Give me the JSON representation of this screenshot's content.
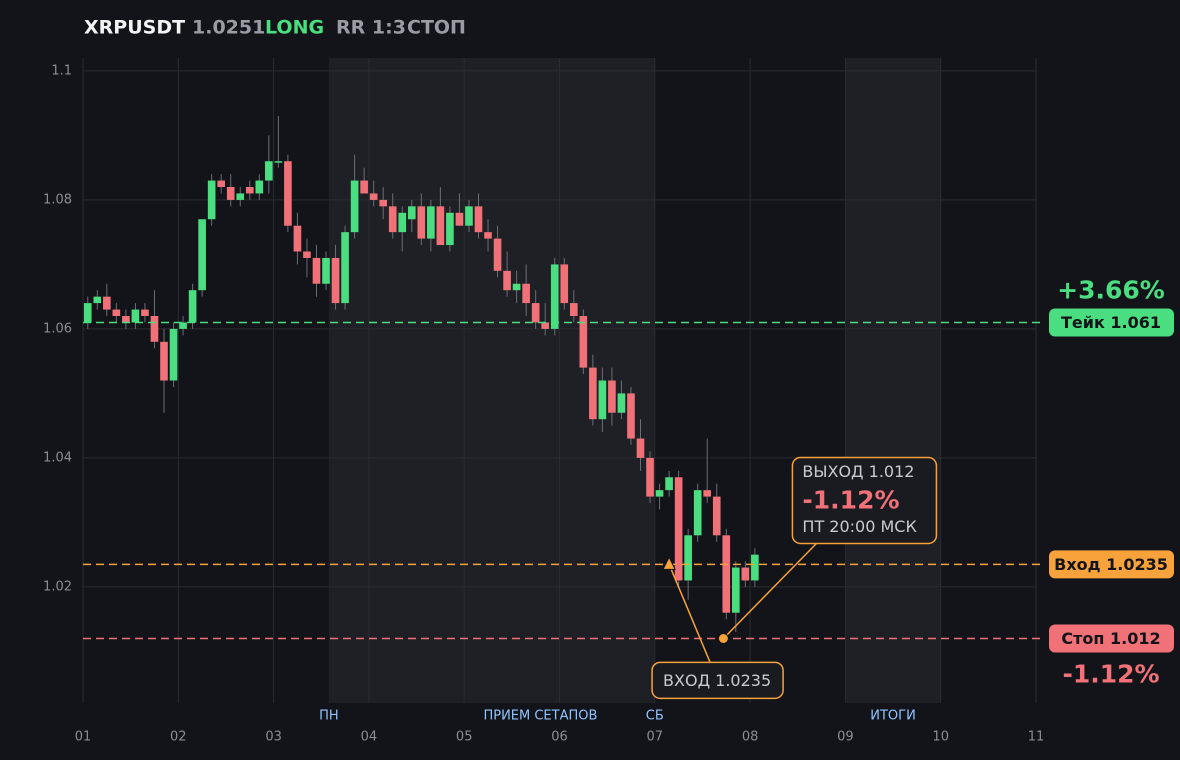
{
  "chart_data": {
    "type": "candlestick",
    "symbol": "XRPUSDT",
    "price": "1.0251",
    "side": "LONG",
    "rr": "RR 1:3",
    "mode": "СТОП",
    "up_color": "#4ade80",
    "down_color": "#f07178",
    "xlim": [
      1,
      11
    ],
    "xticks": [
      {
        "value": 1,
        "label": "01"
      },
      {
        "value": 2,
        "label": "02"
      },
      {
        "value": 3,
        "label": "03"
      },
      {
        "value": 4,
        "label": "04"
      },
      {
        "value": 5,
        "label": "05"
      },
      {
        "value": 6,
        "label": "06"
      },
      {
        "value": 7,
        "label": "07"
      },
      {
        "value": 8,
        "label": "08"
      },
      {
        "value": 9,
        "label": "09"
      },
      {
        "value": 10,
        "label": "10"
      },
      {
        "value": 11,
        "label": "11"
      }
    ],
    "ylim": [
      1.002,
      1.102
    ],
    "yticks": [
      1.02,
      1.04,
      1.06,
      1.08,
      1.1
    ],
    "grid": true,
    "shaded": [
      [
        3.58,
        7.0
      ],
      [
        9.0,
        10.0
      ]
    ],
    "sessions": [
      {
        "label": "ПН",
        "x": 3.58
      },
      {
        "label": "ПРИЕМ СЕТАПОВ",
        "x": 5.8
      },
      {
        "label": "СБ",
        "x": 7.0
      },
      {
        "label": "ИТОГИ",
        "x": 9.5
      }
    ],
    "x": [
      1.05,
      1.15,
      1.25,
      1.35,
      1.45,
      1.55,
      1.65,
      1.75,
      1.85,
      1.95,
      2.05,
      2.15,
      2.25,
      2.35,
      2.45,
      2.55,
      2.65,
      2.75,
      2.85,
      2.95,
      3.05,
      3.15,
      3.25,
      3.35,
      3.45,
      3.55,
      3.65,
      3.75,
      3.85,
      3.95,
      4.05,
      4.15,
      4.25,
      4.35,
      4.45,
      4.55,
      4.65,
      4.75,
      4.85,
      4.95,
      5.05,
      5.15,
      5.25,
      5.35,
      5.45,
      5.55,
      5.65,
      5.75,
      5.85,
      5.95,
      6.05,
      6.15,
      6.25,
      6.35,
      6.45,
      6.55,
      6.65,
      6.75,
      6.85,
      6.95,
      7.05,
      7.15,
      7.25,
      7.35,
      7.45,
      7.55,
      7.65,
      7.75,
      7.85,
      7.95,
      8.05
    ],
    "ohlc": [
      [
        1.061,
        1.065,
        1.06,
        1.064
      ],
      [
        1.064,
        1.066,
        1.063,
        1.065
      ],
      [
        1.065,
        1.067,
        1.062,
        1.063
      ],
      [
        1.063,
        1.064,
        1.061,
        1.062
      ],
      [
        1.062,
        1.063,
        1.06,
        1.061
      ],
      [
        1.061,
        1.064,
        1.06,
        1.063
      ],
      [
        1.063,
        1.064,
        1.061,
        1.062
      ],
      [
        1.062,
        1.066,
        1.057,
        1.058
      ],
      [
        1.058,
        1.06,
        1.047,
        1.052
      ],
      [
        1.052,
        1.061,
        1.051,
        1.06
      ],
      [
        1.06,
        1.062,
        1.059,
        1.061
      ],
      [
        1.061,
        1.067,
        1.06,
        1.066
      ],
      [
        1.066,
        1.077,
        1.065,
        1.077
      ],
      [
        1.077,
        1.084,
        1.076,
        1.083
      ],
      [
        1.083,
        1.084,
        1.081,
        1.082
      ],
      [
        1.082,
        1.084,
        1.079,
        1.08
      ],
      [
        1.08,
        1.082,
        1.079,
        1.081
      ],
      [
        1.082,
        1.083,
        1.08,
        1.081
      ],
      [
        1.081,
        1.084,
        1.08,
        1.083
      ],
      [
        1.083,
        1.09,
        1.081,
        1.086
      ],
      [
        1.086,
        1.093,
        1.085,
        1.086
      ],
      [
        1.086,
        1.087,
        1.075,
        1.076
      ],
      [
        1.076,
        1.078,
        1.07,
        1.072
      ],
      [
        1.072,
        1.074,
        1.068,
        1.071
      ],
      [
        1.071,
        1.073,
        1.065,
        1.067
      ],
      [
        1.067,
        1.072,
        1.066,
        1.071
      ],
      [
        1.071,
        1.073,
        1.063,
        1.064
      ],
      [
        1.064,
        1.076,
        1.063,
        1.075
      ],
      [
        1.075,
        1.087,
        1.074,
        1.083
      ],
      [
        1.083,
        1.085,
        1.081,
        1.081
      ],
      [
        1.081,
        1.083,
        1.079,
        1.08
      ],
      [
        1.08,
        1.082,
        1.077,
        1.079
      ],
      [
        1.079,
        1.081,
        1.074,
        1.075
      ],
      [
        1.075,
        1.079,
        1.072,
        1.078
      ],
      [
        1.077,
        1.08,
        1.075,
        1.079
      ],
      [
        1.079,
        1.081,
        1.073,
        1.074
      ],
      [
        1.074,
        1.08,
        1.072,
        1.079
      ],
      [
        1.079,
        1.082,
        1.073,
        1.073
      ],
      [
        1.073,
        1.079,
        1.072,
        1.078
      ],
      [
        1.078,
        1.081,
        1.076,
        1.076
      ],
      [
        1.076,
        1.08,
        1.075,
        1.079
      ],
      [
        1.079,
        1.081,
        1.074,
        1.075
      ],
      [
        1.075,
        1.077,
        1.072,
        1.074
      ],
      [
        1.074,
        1.076,
        1.068,
        1.069
      ],
      [
        1.069,
        1.072,
        1.065,
        1.066
      ],
      [
        1.066,
        1.069,
        1.064,
        1.067
      ],
      [
        1.067,
        1.07,
        1.062,
        1.064
      ],
      [
        1.064,
        1.066,
        1.06,
        1.061
      ],
      [
        1.061,
        1.064,
        1.059,
        1.06
      ],
      [
        1.06,
        1.071,
        1.059,
        1.07
      ],
      [
        1.07,
        1.071,
        1.063,
        1.064
      ],
      [
        1.064,
        1.066,
        1.061,
        1.062
      ],
      [
        1.062,
        1.063,
        1.053,
        1.054
      ],
      [
        1.054,
        1.056,
        1.045,
        1.046
      ],
      [
        1.046,
        1.054,
        1.044,
        1.052
      ],
      [
        1.052,
        1.054,
        1.045,
        1.047
      ],
      [
        1.047,
        1.052,
        1.046,
        1.05
      ],
      [
        1.05,
        1.051,
        1.042,
        1.043
      ],
      [
        1.043,
        1.046,
        1.038,
        1.04
      ],
      [
        1.04,
        1.041,
        1.033,
        1.034
      ],
      [
        1.034,
        1.036,
        1.032,
        1.035
      ],
      [
        1.035,
        1.038,
        1.034,
        1.037
      ],
      [
        1.037,
        1.038,
        1.02,
        1.021
      ],
      [
        1.021,
        1.029,
        1.018,
        1.028
      ],
      [
        1.028,
        1.036,
        1.027,
        1.035
      ],
      [
        1.035,
        1.043,
        1.033,
        1.034
      ],
      [
        1.034,
        1.036,
        1.027,
        1.028
      ],
      [
        1.028,
        1.029,
        1.015,
        1.016
      ],
      [
        1.016,
        1.024,
        1.013,
        1.023
      ],
      [
        1.023,
        1.024,
        1.02,
        1.021
      ],
      [
        1.021,
        1.026,
        1.02,
        1.025
      ]
    ],
    "levels": [
      {
        "label": "Тейк 1.061",
        "value": 1.061,
        "color": "#4ade80",
        "result": "+3.66%"
      },
      {
        "label": "Вход 1.0235",
        "value": 1.0235,
        "color": "#f7a23b"
      },
      {
        "label": "Стоп 1.012",
        "value": 1.012,
        "color": "#f07178",
        "result": "-1.12%"
      }
    ],
    "entry": {
      "label": "ВХОД 1.0235",
      "x": 7.15,
      "y": 1.0235
    },
    "exit": {
      "lines": [
        "ВЫХОД 1.012",
        "-1.12%",
        "ПТ 20:00 МСК"
      ],
      "x": 7.72,
      "y": 1.012
    }
  }
}
